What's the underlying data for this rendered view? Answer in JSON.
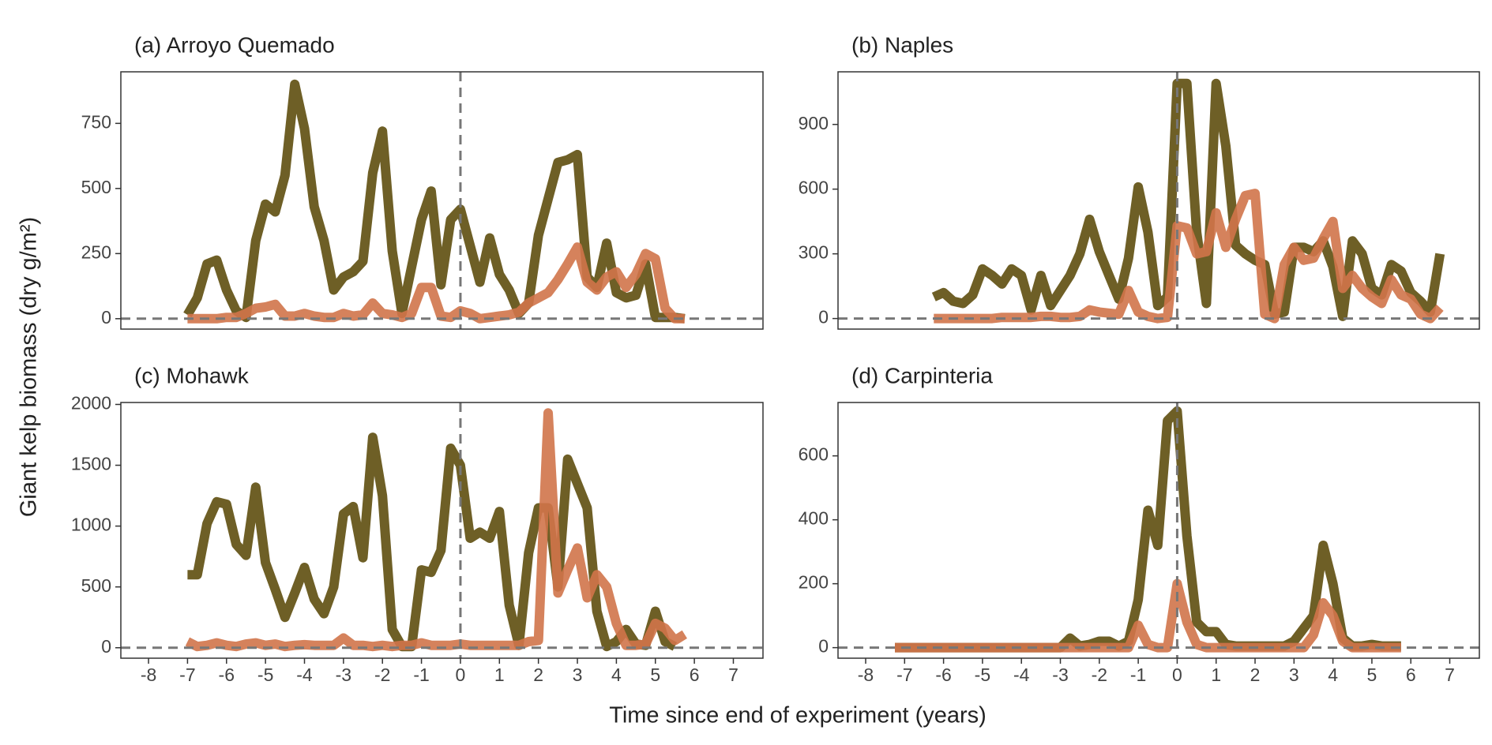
{
  "x_label": "Time since end of experiment (years)",
  "y_label": "Giant kelp biomass (dry g/m²)",
  "chart_data": [
    {
      "type": "line",
      "title": "(a) Arroyo Quemado",
      "x": [
        -7,
        -6.75,
        -6.5,
        -6.25,
        -6,
        -5.75,
        -5.5,
        -5.25,
        -5,
        -4.75,
        -4.5,
        -4.25,
        -4,
        -3.75,
        -3.5,
        -3.25,
        -3,
        -2.75,
        -2.5,
        -2.25,
        -2,
        -1.75,
        -1.5,
        -1.25,
        -1,
        -0.75,
        -0.5,
        -0.25,
        0,
        0.25,
        0.5,
        0.75,
        1,
        1.25,
        1.5,
        1.75,
        2,
        2.25,
        2.5,
        2.75,
        3,
        3.25,
        3.5,
        3.75,
        4,
        4.25,
        4.5,
        4.75,
        5,
        5.25,
        5.5,
        5.75
      ],
      "series": [
        {
          "color": "#6e5f26",
          "values": [
            15,
            80,
            210,
            225,
            110,
            30,
            5,
            300,
            440,
            410,
            550,
            900,
            730,
            430,
            300,
            110,
            160,
            180,
            220,
            560,
            720,
            260,
            20,
            200,
            380,
            490,
            130,
            380,
            420,
            280,
            140,
            310,
            170,
            110,
            20,
            60,
            320,
            460,
            600,
            610,
            630,
            160,
            120,
            290,
            100,
            80,
            90,
            210,
            5,
            5,
            5,
            0
          ]
        },
        {
          "color": "#d0744a",
          "values": [
            0,
            0,
            0,
            0,
            5,
            5,
            20,
            40,
            45,
            55,
            10,
            10,
            20,
            10,
            5,
            5,
            20,
            10,
            15,
            60,
            20,
            15,
            5,
            20,
            120,
            120,
            10,
            5,
            30,
            20,
            0,
            5,
            10,
            15,
            25,
            60,
            80,
            100,
            150,
            210,
            275,
            140,
            110,
            160,
            180,
            120,
            170,
            250,
            230,
            40,
            0,
            0
          ]
        }
      ],
      "xlim": [
        -8.71,
        7.76
      ],
      "ylim": [
        -40,
        948
      ],
      "yticks": [
        0,
        250,
        500,
        750
      ],
      "hlines": [
        0
      ],
      "vlines": [
        0
      ]
    },
    {
      "type": "line",
      "title": "(b) Naples",
      "x": [
        -6.25,
        -6,
        -5.75,
        -5.5,
        -5.25,
        -5,
        -4.75,
        -4.5,
        -4.25,
        -4,
        -3.75,
        -3.5,
        -3.25,
        -3,
        -2.75,
        -2.5,
        -2.25,
        -2,
        -1.75,
        -1.5,
        -1.25,
        -1,
        -0.75,
        -0.5,
        -0.25,
        0,
        0.25,
        0.5,
        0.75,
        1,
        1.25,
        1.5,
        1.75,
        2,
        2.25,
        2.5,
        2.75,
        3,
        3.25,
        3.5,
        3.75,
        4,
        4.25,
        4.5,
        4.75,
        5,
        5.25,
        5.5,
        5.75,
        6,
        6.25,
        6.5,
        6.75
      ],
      "series": [
        {
          "color": "#6e5f26",
          "values": [
            100,
            120,
            80,
            70,
            110,
            230,
            200,
            160,
            230,
            200,
            40,
            200,
            60,
            130,
            200,
            300,
            460,
            310,
            200,
            90,
            280,
            610,
            400,
            60,
            100,
            1090,
            1090,
            400,
            70,
            1090,
            800,
            340,
            300,
            270,
            250,
            20,
            30,
            330,
            330,
            310,
            360,
            240,
            10,
            360,
            300,
            140,
            110,
            250,
            220,
            120,
            80,
            30,
            300
          ]
        },
        {
          "color": "#d0744a",
          "values": [
            0,
            0,
            0,
            0,
            0,
            0,
            0,
            5,
            5,
            5,
            5,
            10,
            10,
            5,
            5,
            10,
            40,
            30,
            25,
            20,
            130,
            30,
            10,
            0,
            5,
            430,
            420,
            300,
            310,
            490,
            330,
            460,
            570,
            580,
            20,
            0,
            250,
            330,
            270,
            280,
            370,
            450,
            140,
            200,
            140,
            100,
            70,
            180,
            110,
            90,
            20,
            0,
            50
          ]
        }
      ],
      "xlim": [
        -8.71,
        7.76
      ],
      "ylim": [
        -49,
        1144
      ],
      "yticks": [
        0,
        300,
        600,
        900
      ],
      "hlines": [
        0
      ],
      "vlines": [
        0
      ]
    },
    {
      "type": "line",
      "title": "(c) Mohawk",
      "x": [
        -7,
        -6.75,
        -6.5,
        -6.25,
        -6,
        -5.75,
        -5.5,
        -5.25,
        -5,
        -4.75,
        -4.5,
        -4.25,
        -4,
        -3.75,
        -3.5,
        -3.25,
        -3,
        -2.75,
        -2.5,
        -2.25,
        -2,
        -1.75,
        -1.5,
        -1.25,
        -1,
        -0.75,
        -0.5,
        -0.25,
        0,
        0.25,
        0.5,
        0.75,
        1,
        1.25,
        1.5,
        1.75,
        2,
        2.25,
        2.5,
        2.75,
        3,
        3.25,
        3.5,
        3.75,
        4,
        4.25,
        4.5,
        4.75,
        5,
        5.25,
        5.5,
        5.75
      ],
      "series": [
        {
          "color": "#6e5f26",
          "values": [
            600,
            600,
            1020,
            1200,
            1180,
            850,
            760,
            1320,
            700,
            480,
            250,
            450,
            660,
            400,
            280,
            500,
            1100,
            1160,
            740,
            1730,
            1250,
            150,
            10,
            10,
            640,
            620,
            800,
            1640,
            1500,
            900,
            950,
            900,
            1120,
            350,
            20,
            780,
            1150,
            1150,
            500,
            1550,
            1350,
            1150,
            300,
            10,
            50,
            150,
            30,
            20,
            300,
            50,
            10,
            null
          ]
        },
        {
          "color": "#d0744a",
          "values": [
            50,
            10,
            20,
            40,
            20,
            10,
            30,
            40,
            20,
            30,
            10,
            20,
            25,
            20,
            20,
            20,
            80,
            20,
            20,
            10,
            20,
            10,
            20,
            20,
            40,
            20,
            20,
            20,
            30,
            20,
            20,
            20,
            20,
            20,
            20,
            50,
            60,
            1930,
            450,
            640,
            820,
            410,
            600,
            500,
            200,
            20,
            20,
            30,
            200,
            160,
            60,
            110
          ]
        }
      ],
      "xlim": [
        -8.71,
        7.76
      ],
      "ylim": [
        -86,
        2016
      ],
      "yticks": [
        0,
        500,
        1000,
        1500,
        2000
      ],
      "xticks": [
        -8,
        -7,
        -6,
        -5,
        -4,
        -3,
        -2,
        -1,
        0,
        1,
        2,
        3,
        4,
        5,
        6,
        7
      ],
      "hlines": [
        0
      ],
      "vlines": [
        0
      ]
    },
    {
      "type": "line",
      "title": "(d) Carpinteria",
      "x": [
        -7.25,
        -7,
        -6.75,
        -6.5,
        -6.25,
        -6,
        -5.75,
        -5.5,
        -5.25,
        -5,
        -4.75,
        -4.5,
        -4.25,
        -4,
        -3.75,
        -3.5,
        -3.25,
        -3,
        -2.75,
        -2.5,
        -2.25,
        -2,
        -1.75,
        -1.5,
        -1.25,
        -1,
        -0.75,
        -0.5,
        -0.25,
        0,
        0.25,
        0.5,
        0.75,
        1,
        1.25,
        1.5,
        1.75,
        2,
        2.25,
        2.5,
        2.75,
        3,
        3.25,
        3.5,
        3.75,
        4,
        4.25,
        4.5,
        4.75,
        5,
        5.25,
        5.5,
        5.75
      ],
      "series": [
        {
          "color": "#6e5f26",
          "values": [
            0,
            0,
            0,
            0,
            0,
            0,
            0,
            0,
            0,
            0,
            0,
            0,
            0,
            0,
            0,
            0,
            0,
            0,
            30,
            5,
            10,
            20,
            20,
            5,
            20,
            150,
            430,
            320,
            710,
            740,
            350,
            80,
            50,
            50,
            10,
            5,
            5,
            5,
            5,
            5,
            5,
            20,
            60,
            100,
            320,
            200,
            30,
            5,
            5,
            10,
            5,
            5,
            5
          ]
        },
        {
          "color": "#d0744a",
          "values": [
            0,
            0,
            0,
            0,
            0,
            0,
            0,
            0,
            0,
            0,
            0,
            0,
            0,
            0,
            0,
            0,
            0,
            0,
            0,
            0,
            0,
            0,
            0,
            0,
            0,
            70,
            10,
            0,
            0,
            200,
            80,
            10,
            0,
            0,
            0,
            0,
            0,
            0,
            0,
            0,
            0,
            0,
            0,
            40,
            140,
            100,
            20,
            0,
            0,
            0,
            0,
            0,
            0
          ]
        }
      ],
      "xlim": [
        -8.71,
        7.76
      ],
      "ylim": [
        -33,
        767
      ],
      "yticks": [
        0,
        200,
        400,
        600
      ],
      "xticks": [
        -8,
        -7,
        -6,
        -5,
        -4,
        -3,
        -2,
        -1,
        0,
        1,
        2,
        3,
        4,
        5,
        6,
        7
      ],
      "hlines": [
        0
      ],
      "vlines": [
        0
      ]
    }
  ]
}
